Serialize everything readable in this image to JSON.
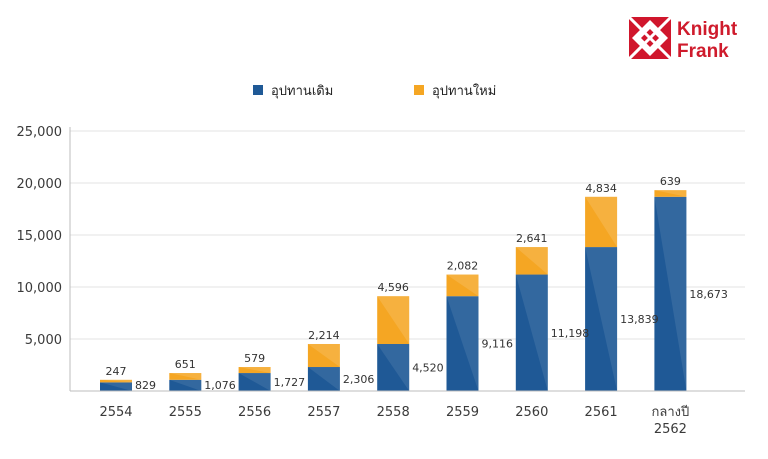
{
  "brand": {
    "name_line1": "Knight",
    "name_line2": "Frank",
    "color": "#d0162c"
  },
  "legend": {
    "placement": "top-center",
    "items": [
      {
        "label": "อุปทานเดิม",
        "color": "#1f5996"
      },
      {
        "label": "อุปทานใหม่",
        "color": "#f5a623"
      }
    ]
  },
  "chart_data": {
    "type": "bar",
    "stacked": true,
    "categories": [
      "2554",
      "2555",
      "2556",
      "2557",
      "2558",
      "2559",
      "2560",
      "2561",
      "กลางปี\n2562"
    ],
    "series": [
      {
        "name": "อุปทานเดิม",
        "color": "#1f5996",
        "values": [
          829,
          1076,
          1727,
          2306,
          4520,
          9116,
          11198,
          13839,
          18673
        ]
      },
      {
        "name": "อุปทานใหม่",
        "color": "#f5a623",
        "values": [
          247,
          651,
          579,
          2214,
          4596,
          2082,
          2641,
          4834,
          639
        ]
      }
    ],
    "data_labels": {
      "existing": [
        "829",
        "1,076",
        "1,727",
        "2,306",
        "4,520",
        "9,116",
        "11,198",
        "13,839",
        "18,673"
      ],
      "new": [
        "247",
        "651",
        "579",
        "2,214",
        "4,596",
        "2,082",
        "2,641",
        "4,834",
        "639"
      ]
    },
    "y_ticks": [
      "5,000",
      "10,000",
      "15,000",
      "20,000",
      "25,000"
    ],
    "y_tick_values": [
      5000,
      10000,
      15000,
      20000,
      25000
    ],
    "ylim": [
      0,
      25000
    ],
    "grid": true
  }
}
